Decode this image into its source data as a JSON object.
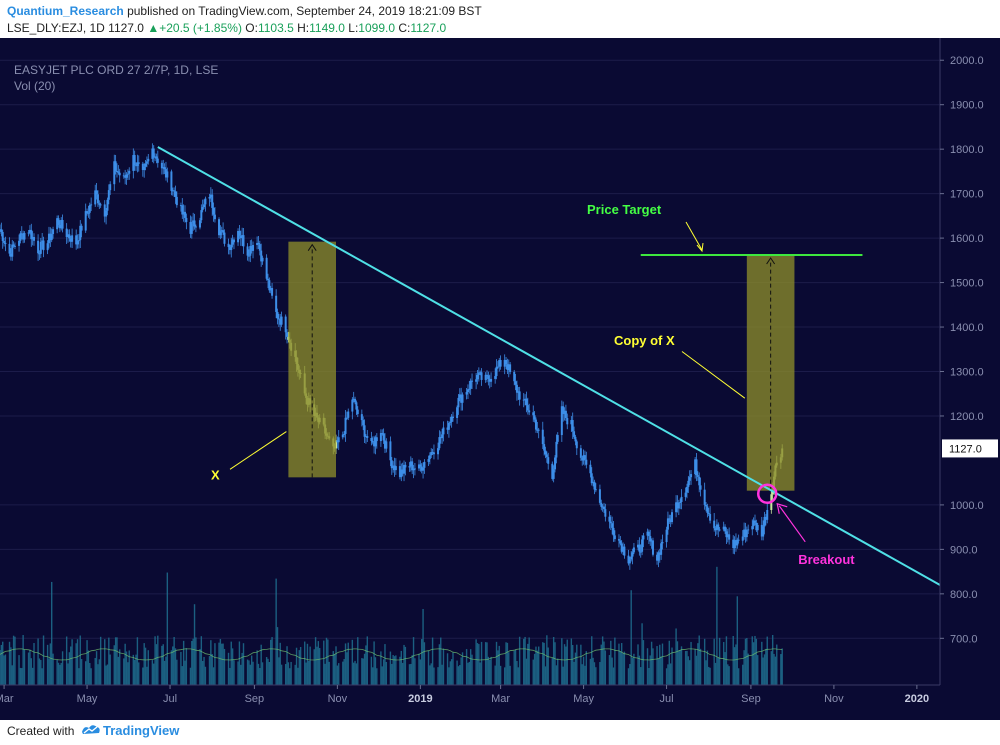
{
  "header": {
    "author": "Quantium_Research",
    "published_text": "published on TradingView.com, September 24, 2019 18:21:09 BST",
    "symbol": "LSE_DLY:EZJ, 1D",
    "price": "1127.0",
    "change": "+20.5 (+1.85%)",
    "o_label": "O:",
    "o_value": "1103.5",
    "h_label": "H:",
    "h_value": "1149.0",
    "l_label": "L:",
    "l_value": "1099.0",
    "c_label": "C:",
    "c_value": "1127.0"
  },
  "legend": {
    "instrument": "EASYJET PLC ORD 27 2/7P, 1D, LSE",
    "volume": "Vol (20)"
  },
  "footer": {
    "created_with": "Created with",
    "brand": "TradingView"
  },
  "colors": {
    "background": "#0a0a33",
    "candle": "#3d8ee8",
    "candle_highlight": "#c8e89c",
    "trendline": "#4fe0e6",
    "price_target_line": "#3ee83e",
    "box_fill": "#8a8a2a",
    "annotation_yellow": "#ffff33",
    "annotation_green": "#44ff44",
    "annotation_magenta": "#ff33dd"
  },
  "chart_data": {
    "type": "candlestick",
    "title": "EASYJET PLC ORD 27 2/7P, 1D, LSE",
    "y_axis": {
      "side": "right",
      "ticks": [
        "2000.0",
        "1900.0",
        "1800.0",
        "1700.0",
        "1600.0",
        "1500.0",
        "1400.0",
        "1300.0",
        "1200.0",
        "1000.0",
        "900.0",
        "800.0",
        "700.0"
      ],
      "tick_values": [
        2000,
        1900,
        1800,
        1700,
        1600,
        1500,
        1400,
        1300,
        1200,
        1000,
        900,
        800,
        700
      ],
      "ylim": [
        595,
        2050
      ],
      "last_price_label": "1127.0",
      "last_price": 1127
    },
    "x_axis": {
      "tick_labels": [
        "Mar",
        "May",
        "Jul",
        "Sep",
        "Nov",
        "2019",
        "Mar",
        "May",
        "Jul",
        "Sep",
        "Nov",
        "2020"
      ],
      "tick_dates": [
        "2018-03-01",
        "2018-05-01",
        "2018-07-01",
        "2018-09-01",
        "2018-11-01",
        "2019-01-01",
        "2019-03-01",
        "2019-05-01",
        "2019-07-01",
        "2019-09-01",
        "2019-11-01",
        "2020-01-01"
      ],
      "range": [
        "2018-02-26",
        "2020-01-18"
      ]
    },
    "price_path": [
      [
        "2018-02-26",
        1620
      ],
      [
        "2018-03-05",
        1565
      ],
      [
        "2018-03-12",
        1600
      ],
      [
        "2018-03-19",
        1620
      ],
      [
        "2018-03-26",
        1575
      ],
      [
        "2018-04-02",
        1590
      ],
      [
        "2018-04-09",
        1640
      ],
      [
        "2018-04-16",
        1610
      ],
      [
        "2018-04-23",
        1590
      ],
      [
        "2018-04-30",
        1650
      ],
      [
        "2018-05-07",
        1700
      ],
      [
        "2018-05-14",
        1660
      ],
      [
        "2018-05-21",
        1760
      ],
      [
        "2018-05-28",
        1730
      ],
      [
        "2018-06-04",
        1780
      ],
      [
        "2018-06-11",
        1740
      ],
      [
        "2018-06-18",
        1800
      ],
      [
        "2018-06-25",
        1760
      ],
      [
        "2018-07-02",
        1720
      ],
      [
        "2018-07-09",
        1660
      ],
      [
        "2018-07-16",
        1620
      ],
      [
        "2018-07-23",
        1650
      ],
      [
        "2018-07-30",
        1700
      ],
      [
        "2018-08-06",
        1620
      ],
      [
        "2018-08-13",
        1580
      ],
      [
        "2018-08-20",
        1620
      ],
      [
        "2018-08-27",
        1570
      ],
      [
        "2018-09-03",
        1600
      ],
      [
        "2018-09-10",
        1510
      ],
      [
        "2018-09-17",
        1430
      ],
      [
        "2018-09-24",
        1400
      ],
      [
        "2018-10-01",
        1330
      ],
      [
        "2018-10-08",
        1250
      ],
      [
        "2018-10-15",
        1200
      ],
      [
        "2018-10-22",
        1170
      ],
      [
        "2018-10-29",
        1120
      ],
      [
        "2018-11-05",
        1160
      ],
      [
        "2018-11-12",
        1240
      ],
      [
        "2018-11-19",
        1180
      ],
      [
        "2018-11-26",
        1130
      ],
      [
        "2018-12-03",
        1170
      ],
      [
        "2018-12-10",
        1100
      ],
      [
        "2018-12-17",
        1070
      ],
      [
        "2018-12-24",
        1090
      ],
      [
        "2018-12-31",
        1080
      ],
      [
        "2019-01-07",
        1110
      ],
      [
        "2019-01-14",
        1140
      ],
      [
        "2019-01-21",
        1180
      ],
      [
        "2019-01-28",
        1230
      ],
      [
        "2019-02-04",
        1260
      ],
      [
        "2019-02-11",
        1290
      ],
      [
        "2019-02-18",
        1280
      ],
      [
        "2019-02-25",
        1300
      ],
      [
        "2019-03-04",
        1330
      ],
      [
        "2019-03-11",
        1270
      ],
      [
        "2019-03-18",
        1230
      ],
      [
        "2019-03-25",
        1200
      ],
      [
        "2019-04-01",
        1130
      ],
      [
        "2019-04-08",
        1070
      ],
      [
        "2019-04-15",
        1210
      ],
      [
        "2019-04-22",
        1180
      ],
      [
        "2019-04-29",
        1110
      ],
      [
        "2019-05-06",
        1070
      ],
      [
        "2019-05-13",
        1010
      ],
      [
        "2019-05-20",
        960
      ],
      [
        "2019-05-27",
        920
      ],
      [
        "2019-06-03",
        880
      ],
      [
        "2019-06-10",
        900
      ],
      [
        "2019-06-17",
        930
      ],
      [
        "2019-06-24",
        880
      ],
      [
        "2019-07-01",
        950
      ],
      [
        "2019-07-08",
        1000
      ],
      [
        "2019-07-15",
        1040
      ],
      [
        "2019-07-22",
        1090
      ],
      [
        "2019-07-29",
        1010
      ],
      [
        "2019-08-05",
        950
      ],
      [
        "2019-08-12",
        940
      ],
      [
        "2019-08-19",
        910
      ],
      [
        "2019-08-26",
        930
      ],
      [
        "2019-09-02",
        960
      ],
      [
        "2019-09-09",
        940
      ],
      [
        "2019-09-16",
        1030
      ],
      [
        "2019-09-20",
        1100
      ],
      [
        "2019-09-24",
        1127
      ]
    ],
    "volume_avg_level": 0.35,
    "annotations": {
      "trendline": {
        "from": [
          "2018-06-22",
          1805
        ],
        "to": [
          "2020-01-18",
          820
        ]
      },
      "price_target": {
        "label": "Price Target",
        "from": [
          "2019-06-12",
          1562
        ],
        "to": [
          "2019-11-22",
          1562
        ]
      },
      "box_x": {
        "label": "X",
        "from": [
          "2018-09-26",
          1062
        ],
        "to": [
          "2018-10-31",
          1592
        ]
      },
      "box_copy": {
        "label": "Copy of X",
        "from": [
          "2019-08-29",
          1032
        ],
        "to": [
          "2019-10-03",
          1562
        ]
      },
      "breakout": {
        "label": "Breakout",
        "date": "2019-09-13",
        "price": 1025
      }
    }
  }
}
